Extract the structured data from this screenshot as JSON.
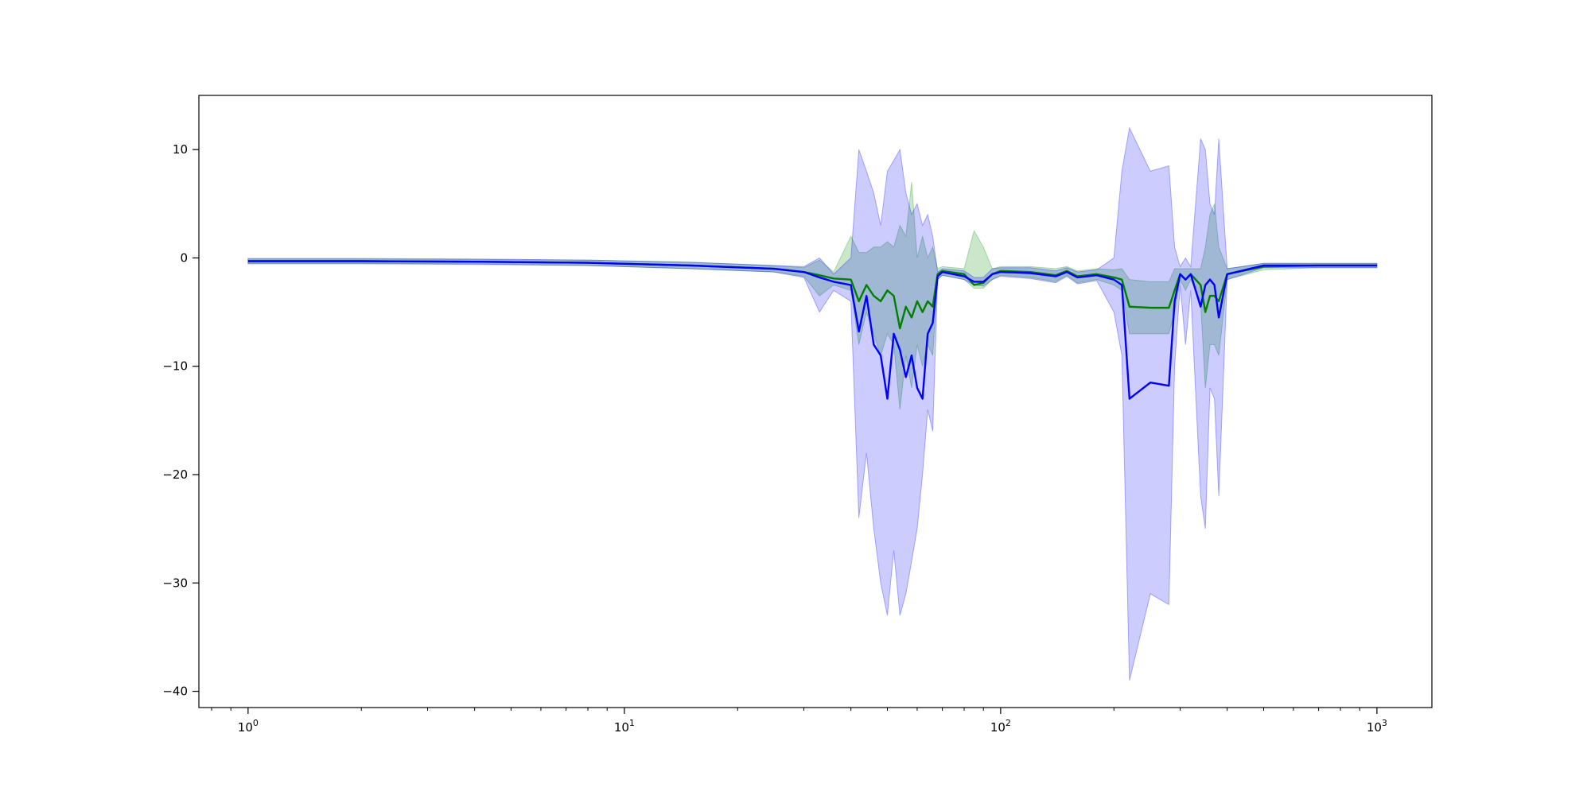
{
  "chart_data": {
    "type": "line",
    "title": "",
    "xlabel": "",
    "ylabel": "",
    "xscale": "log",
    "xlim": [
      0.74,
      1400
    ],
    "ylim": [
      -41.5,
      15
    ],
    "grid": false,
    "legend": "none",
    "x_ticks": [
      {
        "value": 1,
        "base": "10",
        "exp": "0"
      },
      {
        "value": 10,
        "base": "10",
        "exp": "1"
      },
      {
        "value": 100,
        "base": "10",
        "exp": "2"
      },
      {
        "value": 1000,
        "base": "10",
        "exp": "3"
      }
    ],
    "y_ticks": [
      {
        "value": 10,
        "label": "10"
      },
      {
        "value": 0,
        "label": "0"
      },
      {
        "value": -10,
        "label": "−10"
      },
      {
        "value": -20,
        "label": "−20"
      },
      {
        "value": -30,
        "label": "−30"
      },
      {
        "value": -40,
        "label": "−40"
      }
    ],
    "series": [
      {
        "color": "#008000",
        "band_color": "#2ca02c",
        "band_opacity": 0.25,
        "x": [
          1,
          2,
          4,
          8,
          15,
          25,
          30,
          33,
          36,
          40,
          42,
          44,
          46,
          48,
          50,
          52,
          54,
          56,
          58,
          60,
          62,
          64,
          66,
          68,
          70,
          80,
          85,
          90,
          95,
          100,
          120,
          140,
          150,
          160,
          180,
          200,
          210,
          220,
          250,
          280,
          290,
          300,
          310,
          320,
          340,
          350,
          360,
          370,
          380,
          400,
          500,
          700,
          1000
        ],
        "y": [
          -0.3,
          -0.3,
          -0.35,
          -0.45,
          -0.7,
          -1.0,
          -1.3,
          -1.6,
          -1.9,
          -2.0,
          -4.0,
          -2.5,
          -3.5,
          -4.0,
          -3.0,
          -3.5,
          -6.5,
          -4.5,
          -5.5,
          -4.0,
          -5.0,
          -4.0,
          -4.5,
          -1.5,
          -1.2,
          -1.5,
          -2.5,
          -2.3,
          -1.5,
          -1.2,
          -1.3,
          -1.6,
          -1.2,
          -1.7,
          -1.5,
          -1.8,
          -2.0,
          -4.5,
          -4.6,
          -4.6,
          -3.0,
          -1.5,
          -2.0,
          -1.5,
          -2.5,
          -5.0,
          -3.5,
          -3.5,
          -4.0,
          -1.5,
          -0.8,
          -0.7,
          -0.7
        ],
        "lower": [
          -0.5,
          -0.5,
          -0.55,
          -0.7,
          -1.0,
          -1.3,
          -1.7,
          -3.5,
          -2.5,
          -3.0,
          -8.0,
          -5.0,
          -7.0,
          -9.0,
          -7.0,
          -8.0,
          -14.0,
          -9.0,
          -12.0,
          -8.0,
          -10.0,
          -8.0,
          -9.0,
          -2.0,
          -1.6,
          -2.0,
          -2.8,
          -2.8,
          -2.0,
          -1.6,
          -1.8,
          -2.2,
          -1.6,
          -2.3,
          -2.0,
          -2.5,
          -3.0,
          -7.0,
          -7.0,
          -7.0,
          -5.0,
          -2.0,
          -3.0,
          -2.0,
          -4.0,
          -12.0,
          -8.0,
          -8.0,
          -9.0,
          -2.0,
          -1.1,
          -0.9,
          -0.9
        ],
        "upper": [
          -0.1,
          -0.1,
          -0.15,
          -0.2,
          -0.4,
          -0.7,
          -0.9,
          -0.2,
          -1.3,
          2.0,
          0.5,
          0.5,
          1.0,
          1.0,
          1.5,
          1.0,
          3.0,
          2.0,
          7.0,
          0.0,
          2.0,
          0.0,
          1.0,
          -1.0,
          -0.8,
          -1.0,
          2.5,
          1.0,
          -1.0,
          -0.8,
          -0.8,
          -1.0,
          -0.8,
          -1.2,
          -1.0,
          -1.1,
          -1.0,
          -2.0,
          -2.2,
          -2.2,
          -1.0,
          -1.0,
          -1.0,
          -1.0,
          -1.0,
          1.0,
          4.0,
          5.0,
          1.0,
          -1.0,
          -0.5,
          -0.5,
          -0.5
        ]
      },
      {
        "color": "#0000ff",
        "band_color": "#0000ff",
        "band_opacity": 0.2,
        "x": [
          1,
          2,
          4,
          8,
          15,
          25,
          30,
          33,
          36,
          40,
          42,
          44,
          46,
          48,
          50,
          52,
          54,
          56,
          58,
          60,
          62,
          64,
          66,
          68,
          70,
          80,
          85,
          90,
          95,
          100,
          120,
          140,
          150,
          160,
          180,
          200,
          210,
          220,
          250,
          280,
          290,
          300,
          310,
          320,
          340,
          350,
          360,
          370,
          380,
          400,
          500,
          700,
          1000
        ],
        "y": [
          -0.3,
          -0.3,
          -0.35,
          -0.45,
          -0.7,
          -1.0,
          -1.3,
          -1.8,
          -2.2,
          -2.5,
          -6.8,
          -3.5,
          -8.0,
          -9.0,
          -13.0,
          -7.0,
          -8.5,
          -11.0,
          -9.0,
          -12.0,
          -13.0,
          -7.0,
          -6.0,
          -1.7,
          -1.3,
          -1.7,
          -2.2,
          -2.2,
          -1.5,
          -1.3,
          -1.4,
          -1.7,
          -1.3,
          -1.8,
          -1.6,
          -2.0,
          -2.5,
          -13.0,
          -11.5,
          -11.8,
          -4.0,
          -1.5,
          -2.0,
          -1.5,
          -4.5,
          -2.5,
          -2.0,
          -2.5,
          -5.5,
          -1.5,
          -0.7,
          -0.7,
          -0.7
        ],
        "lower": [
          -0.55,
          -0.55,
          -0.6,
          -0.7,
          -1.0,
          -1.3,
          -1.8,
          -5.0,
          -3.0,
          -4.0,
          -24.0,
          -18.0,
          -25.0,
          -30.0,
          -33.0,
          -27.0,
          -33.0,
          -31.0,
          -28.0,
          -25.0,
          -20.0,
          -14.0,
          -16.0,
          -2.0,
          -1.6,
          -2.0,
          -2.5,
          -2.6,
          -2.0,
          -1.7,
          -1.9,
          -2.3,
          -1.7,
          -2.4,
          -2.1,
          -5.0,
          -9.0,
          -39.0,
          -31.0,
          -32.0,
          -10.0,
          -2.5,
          -8.0,
          -3.0,
          -22.0,
          -25.0,
          -12.0,
          -13.0,
          -22.0,
          -2.0,
          -0.9,
          -0.9,
          -0.9
        ],
        "upper": [
          -0.05,
          -0.05,
          -0.1,
          -0.2,
          -0.4,
          -0.7,
          -0.8,
          0.0,
          -1.5,
          0.0,
          10.0,
          8.0,
          6.0,
          3.0,
          8.0,
          9.0,
          10.0,
          6.0,
          4.0,
          5.0,
          3.0,
          4.0,
          2.0,
          -1.3,
          -1.0,
          -1.2,
          -1.8,
          -1.8,
          -1.0,
          -0.9,
          -0.9,
          -1.2,
          -0.9,
          -1.3,
          -1.1,
          0.0,
          8.0,
          12.0,
          8.0,
          8.5,
          1.0,
          -0.8,
          0.0,
          -0.8,
          11.0,
          10.0,
          5.0,
          4.0,
          11.0,
          -1.0,
          -0.5,
          -0.5,
          -0.5
        ]
      }
    ]
  }
}
